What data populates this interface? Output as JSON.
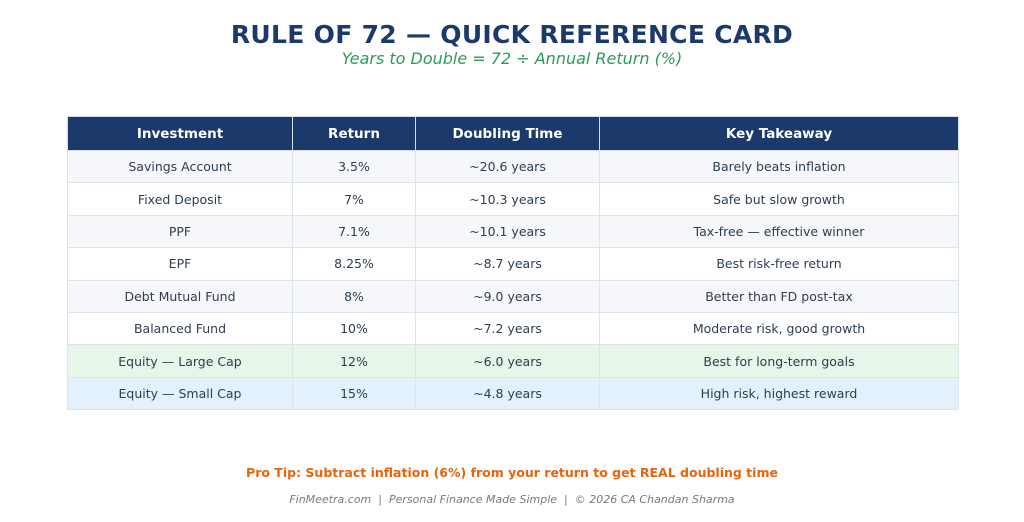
{
  "header": {
    "title": "RULE OF 72 — QUICK REFERENCE CARD",
    "subtitle": "Years to Double = 72 ÷ Annual Return (%)"
  },
  "table": {
    "columns": [
      "Investment",
      "Return",
      "Doubling Time",
      "Key Takeaway"
    ],
    "rows": [
      [
        "Savings Account",
        "3.5%",
        "~20.6 years",
        "Barely beats inflation"
      ],
      [
        "Fixed Deposit",
        "7%",
        "~10.3 years",
        "Safe but slow growth"
      ],
      [
        "PPF",
        "7.1%",
        "~10.1 years",
        "Tax-free — effective winner"
      ],
      [
        "EPF",
        "8.25%",
        "~8.7 years",
        "Best risk-free return"
      ],
      [
        "Debt Mutual Fund",
        "8%",
        "~9.0 years",
        "Better than FD post-tax"
      ],
      [
        "Balanced Fund",
        "10%",
        "~7.2 years",
        "Moderate risk, good growth"
      ],
      [
        "Equity — Large Cap",
        "12%",
        "~6.0 years",
        "Best for long-term goals"
      ],
      [
        "Equity — Small Cap",
        "15%",
        "~4.8 years",
        "High risk, highest reward"
      ]
    ]
  },
  "footer": {
    "tip": "Pro Tip: Subtract inflation (6%) from your return to get REAL doubling time",
    "credits": "FinMeetra.com  |  Personal Finance Made Simple  |  © 2026 CA Chandan Sharma"
  }
}
